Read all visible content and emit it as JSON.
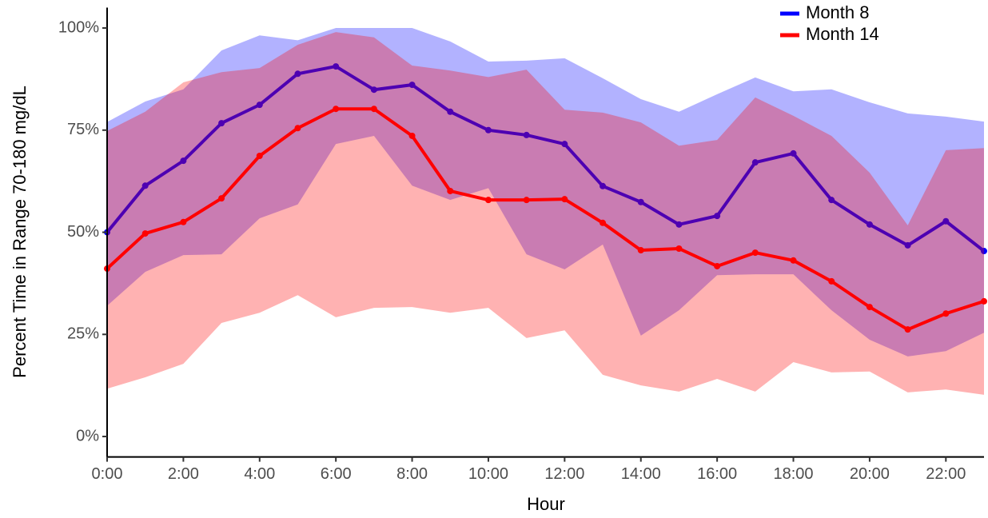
{
  "chart_data": {
    "type": "line-ribbon",
    "x_label": "Hour",
    "y_label": "Percent Time in Range 70-180 mg/dL",
    "x": [
      0,
      1,
      2,
      3,
      4,
      5,
      6,
      7,
      8,
      9,
      10,
      11,
      12,
      13,
      14,
      15,
      16,
      17,
      18,
      19,
      20,
      21,
      22,
      23
    ],
    "xlim": [
      0,
      23
    ],
    "xticks": [
      {
        "value": 0,
        "label": "0:00"
      },
      {
        "value": 2,
        "label": "2:00"
      },
      {
        "value": 4,
        "label": "4:00"
      },
      {
        "value": 6,
        "label": "6:00"
      },
      {
        "value": 8,
        "label": "8:00"
      },
      {
        "value": 10,
        "label": "10:00"
      },
      {
        "value": 12,
        "label": "12:00"
      },
      {
        "value": 14,
        "label": "14:00"
      },
      {
        "value": 16,
        "label": "16:00"
      },
      {
        "value": 18,
        "label": "18:00"
      },
      {
        "value": 20,
        "label": "20:00"
      },
      {
        "value": 22,
        "label": "22:00"
      }
    ],
    "ylim": [
      -5,
      105
    ],
    "yticks": [
      {
        "value": 0,
        "label": "0%"
      },
      {
        "value": 25,
        "label": "25%"
      },
      {
        "value": 50,
        "label": "50%"
      },
      {
        "value": 75,
        "label": "75%"
      },
      {
        "value": 100,
        "label": "100%"
      }
    ],
    "grid": false,
    "legend": "top-right",
    "series": [
      {
        "name": "Month 8",
        "color": "#0000ff",
        "values": [
          50,
          61.4,
          67.5,
          76.7,
          81.2,
          88.8,
          90.6,
          84.9,
          86.1,
          79.5,
          75,
          73.8,
          71.6,
          61.3,
          57.4,
          51.9,
          54,
          67.1,
          69.3,
          57.9,
          51.9,
          46.8,
          52.7,
          45.4
        ],
        "lower": [
          32,
          40.3,
          44.4,
          44.6,
          53.4,
          56.8,
          71.6,
          73.6,
          61.4,
          57.9,
          60.8,
          44.6,
          40.9,
          47,
          24.7,
          30.9,
          39.5,
          39.7,
          39.7,
          30.9,
          23.7,
          19.6,
          20.9,
          25.4
        ],
        "upper": [
          77,
          82,
          85,
          94.5,
          98.2,
          97,
          100,
          100,
          100,
          96.7,
          91.8,
          92,
          92.6,
          87.7,
          82.6,
          79.5,
          83.8,
          87.9,
          84.5,
          85,
          81.8,
          79.1,
          78.3,
          77.1
        ]
      },
      {
        "name": "Month 14",
        "color": "#ff0000",
        "values": [
          41.1,
          49.7,
          52.5,
          58.3,
          68.7,
          75.5,
          80.2,
          80.2,
          73.6,
          60.1,
          57.9,
          57.9,
          58.1,
          52.3,
          45.6,
          46,
          41.7,
          45,
          43.1,
          38,
          31.7,
          26.2,
          30.1,
          33.1
        ],
        "lower": [
          11.7,
          14.5,
          17.8,
          27.8,
          30.3,
          34.6,
          29.2,
          31.5,
          31.7,
          30.3,
          31.5,
          24.1,
          26,
          15.1,
          12.5,
          11,
          14.1,
          11,
          18.2,
          15.7,
          15.9,
          10.8,
          11.5,
          10.2
        ],
        "upper": [
          74.8,
          79.5,
          86.7,
          89.2,
          90.2,
          95.9,
          99,
          97.7,
          90.8,
          89.6,
          88,
          89.8,
          80,
          79.3,
          76.9,
          71.2,
          72.6,
          83,
          78.5,
          73.6,
          64.6,
          51.7,
          70.1,
          70.6
        ]
      }
    ]
  }
}
